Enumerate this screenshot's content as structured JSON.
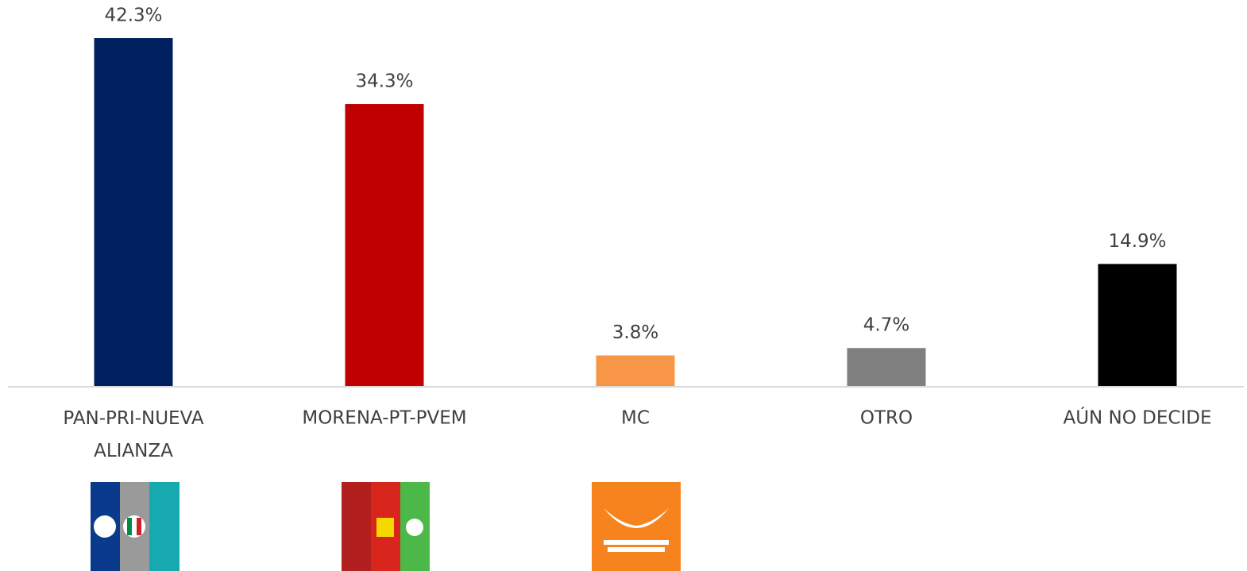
{
  "chart_data": {
    "type": "bar",
    "categories": [
      "PAN-PRI-NUEVA ALIANZA",
      "MORENA-PT-PVEM",
      "MC",
      "OTRO",
      "AÚN NO DECIDE"
    ],
    "values": [
      42.3,
      34.3,
      3.8,
      4.7,
      14.9
    ],
    "value_labels": [
      "42.3%",
      "34.3%",
      "3.8%",
      "4.7%",
      "14.9%"
    ],
    "colors": [
      "#002060",
      "#c00000",
      "#f79646",
      "#808080",
      "#000000"
    ],
    "ylim": [
      0,
      45
    ]
  }
}
